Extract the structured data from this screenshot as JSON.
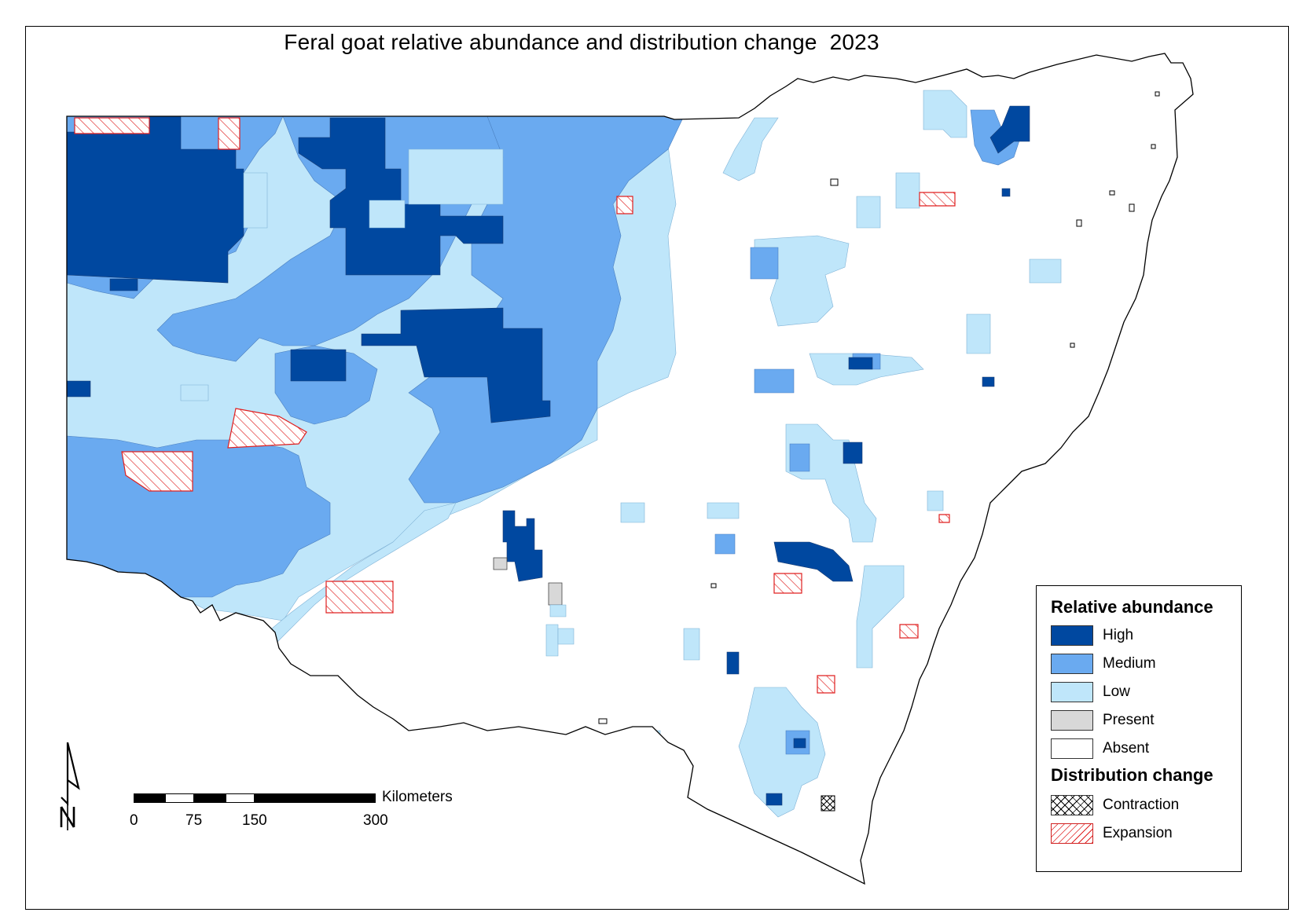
{
  "map": {
    "title": "Feral goat relative abundance and distribution change  2023",
    "colors": {
      "high": "#0048a0",
      "medium": "#6aaaf0",
      "low": "#bfe6fa",
      "present": "#d8d8d8",
      "absent": "#ffffff",
      "expansion": "#e02020",
      "contraction": "#000000",
      "outline": "#000000"
    }
  },
  "legend": {
    "abundance_heading": "Relative abundance",
    "abundance_items": [
      {
        "label": "High",
        "color": "#0048a0"
      },
      {
        "label": "Medium",
        "color": "#6aaaf0"
      },
      {
        "label": "Low",
        "color": "#bfe6fa"
      },
      {
        "label": "Present",
        "color": "#d8d8d8"
      },
      {
        "label": "Absent",
        "color": "#ffffff"
      }
    ],
    "change_heading": "Distribution change",
    "change_items": [
      {
        "label": "Contraction",
        "pattern": "cross-hatch"
      },
      {
        "label": "Expansion",
        "pattern": "red-diagonal-hatch"
      }
    ]
  },
  "scale_bar": {
    "units": "Kilometers",
    "ticks": [
      "0",
      "75",
      "150",
      "300"
    ]
  },
  "north_arrow": {
    "label": "N",
    "icon": "north-arrow-icon"
  }
}
